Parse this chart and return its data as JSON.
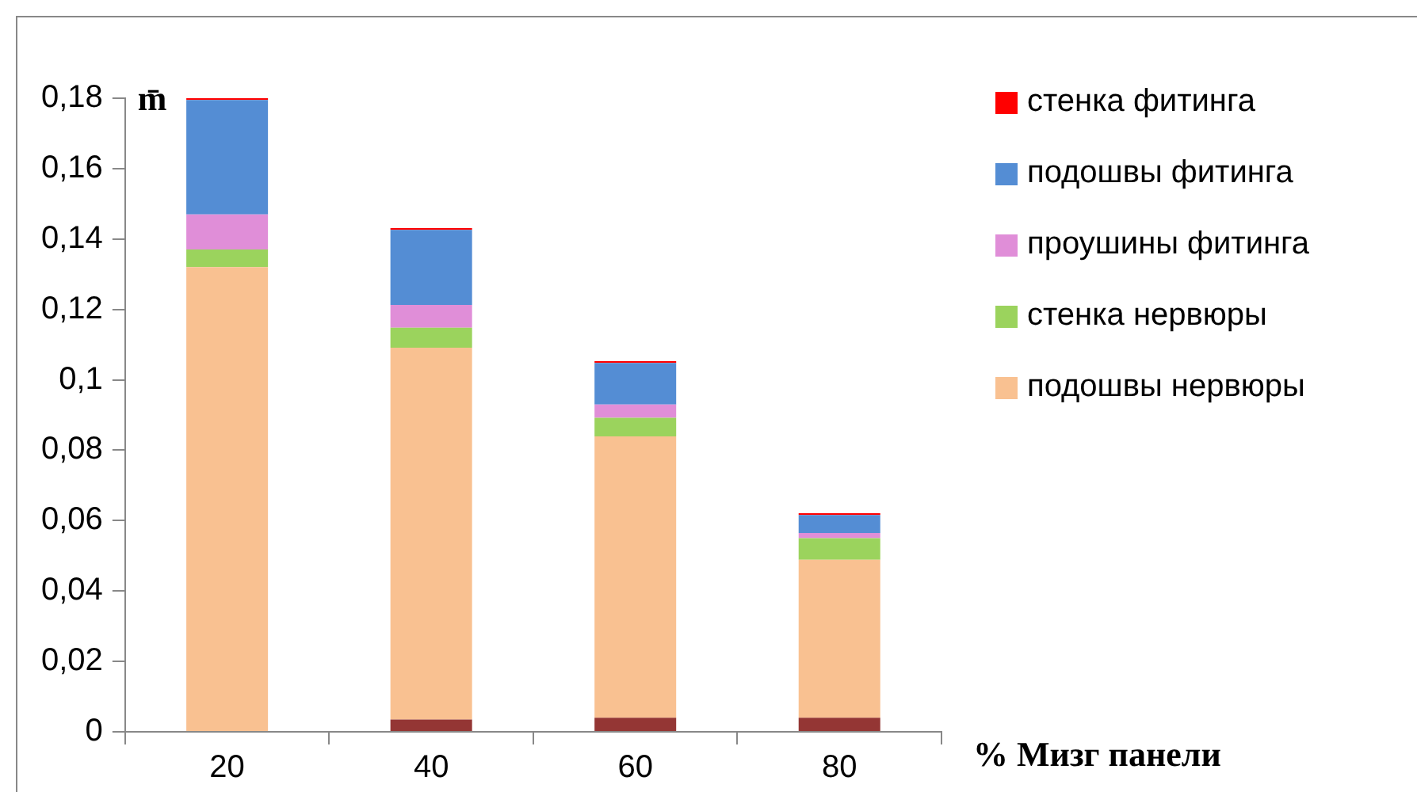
{
  "chart_data": {
    "type": "bar",
    "stacked": true,
    "categories": [
      "20",
      "40",
      "60",
      "80"
    ],
    "xlabel": "% Мизг панели",
    "ylabel": "m̄",
    "series": [
      {
        "color": "#943634",
        "values": [
          0,
          0.0035,
          0.004,
          0.004
        ]
      },
      {
        "name": "подошвы нервюры",
        "color": "#f9c191",
        "values": [
          0.132,
          0.1056,
          0.0799,
          0.0449
        ]
      },
      {
        "name": "стенка нервюры",
        "color": "#9bd35d",
        "values": [
          0.005,
          0.0057,
          0.0053,
          0.0061
        ]
      },
      {
        "name": "проушины фитинга",
        "color": "#e08ed8",
        "values": [
          0.01,
          0.0065,
          0.0038,
          0.0015
        ]
      },
      {
        "name": "подошвы фитинга",
        "color": "#548dd4",
        "values": [
          0.0325,
          0.0213,
          0.0118,
          0.0051
        ]
      },
      {
        "name": "стенка фитинга",
        "color": "#ff0000",
        "values": [
          0.0005,
          0.0005,
          0.0005,
          0.0005
        ]
      }
    ],
    "ylim": [
      0,
      0.18
    ],
    "yticks": [
      0,
      {
        "value": 0.02,
        "label": "0,02"
      },
      {
        "value": 0.04,
        "label": "0,04"
      },
      {
        "value": 0.06,
        "label": "0,06"
      },
      {
        "value": 0.08,
        "label": "0,08"
      },
      {
        "value": 0.1,
        "label": "0,1"
      },
      {
        "value": 0.12,
        "label": "0,12"
      },
      {
        "value": 0.14,
        "label": "0,14"
      },
      {
        "value": 0.16,
        "label": "0,16"
      },
      {
        "value": 0.18,
        "label": "0,18"
      }
    ],
    "grid": false,
    "legend": "right"
  }
}
